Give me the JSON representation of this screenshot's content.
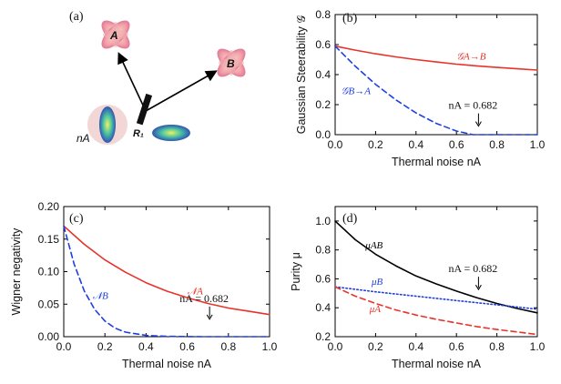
{
  "figure": {
    "panel_a": {
      "label": "(a)",
      "mode_a_label": "A",
      "mode_b_label": "B",
      "beam_splitter_label": "R₁",
      "noise_label": "nA"
    }
  },
  "chart_data": [
    {
      "id": "b",
      "type": "line",
      "panel_label": "(b)",
      "xlabel": "Thermal noise nA",
      "ylabel": "Gaussian Steerability 𝒢",
      "xlim": [
        0,
        1.0
      ],
      "ylim": [
        0,
        0.8
      ],
      "xticks": [
        "0.0",
        "0.2",
        "0.4",
        "0.6",
        "0.8",
        "1.0"
      ],
      "yticks": [
        "0.0",
        "0.2",
        "0.4",
        "0.6",
        "0.8"
      ],
      "grid": false,
      "series": [
        {
          "name": "𝒢A→B",
          "color": "#e8332a",
          "dash": "solid",
          "x": [
            0,
            0.1,
            0.2,
            0.3,
            0.4,
            0.5,
            0.6,
            0.7,
            0.8,
            0.9,
            1.0
          ],
          "y": [
            0.59,
            0.563,
            0.539,
            0.518,
            0.5,
            0.484,
            0.47,
            0.458,
            0.448,
            0.439,
            0.43
          ]
        },
        {
          "name": "𝒢B→A",
          "color": "#1f3fe0",
          "dash": "dashed",
          "x": [
            0,
            0.1,
            0.2,
            0.3,
            0.4,
            0.5,
            0.6,
            0.682,
            0.8,
            0.9,
            1.0
          ],
          "y": [
            0.59,
            0.455,
            0.335,
            0.232,
            0.145,
            0.075,
            0.024,
            0.0,
            0.0,
            0.0,
            0.0
          ]
        }
      ],
      "annotation": {
        "text": "nA = 0.682",
        "x": 0.682
      }
    },
    {
      "id": "c",
      "type": "line",
      "panel_label": "(c)",
      "xlabel": "Thermal noise nA",
      "ylabel": "Wigner negativity",
      "xlim": [
        0,
        1.0
      ],
      "ylim": [
        0,
        0.2
      ],
      "xticks": [
        "0.0",
        "0.2",
        "0.4",
        "0.6",
        "0.8",
        "1.0"
      ],
      "yticks": [
        "0.00",
        "0.05",
        "0.10",
        "0.15",
        "0.20"
      ],
      "grid": false,
      "series": [
        {
          "name": "𝒩A",
          "color": "#e8332a",
          "dash": "solid",
          "x": [
            0,
            0.1,
            0.2,
            0.3,
            0.4,
            0.5,
            0.6,
            0.7,
            0.8,
            0.9,
            1.0
          ],
          "y": [
            0.17,
            0.142,
            0.118,
            0.099,
            0.083,
            0.07,
            0.06,
            0.051,
            0.044,
            0.039,
            0.034
          ]
        },
        {
          "name": "𝒩B",
          "color": "#1f3fe0",
          "dash": "dashed",
          "x": [
            0,
            0.05,
            0.1,
            0.15,
            0.2,
            0.25,
            0.3,
            0.4,
            0.5,
            0.6,
            0.682,
            0.8,
            1.0
          ],
          "y": [
            0.17,
            0.112,
            0.07,
            0.042,
            0.024,
            0.013,
            0.007,
            0.002,
            0.0005,
            0.0001,
            0.0,
            0.0,
            0.0
          ]
        }
      ],
      "annotation": {
        "text": "nA = 0.682",
        "x": 0.682
      }
    },
    {
      "id": "d",
      "type": "line",
      "panel_label": "(d)",
      "xlabel": "Thermal noise nA",
      "ylabel": "Purity μ",
      "xlim": [
        0,
        1.0
      ],
      "ylim": [
        0.2,
        1.1
      ],
      "xticks": [
        "0.0",
        "0.2",
        "0.4",
        "0.6",
        "0.8",
        "1.0"
      ],
      "yticks": [
        "0.2",
        "0.4",
        "0.6",
        "0.8",
        "1.0"
      ],
      "grid": false,
      "series": [
        {
          "name": "μAB",
          "color": "#000000",
          "dash": "solid",
          "x": [
            0,
            0.1,
            0.2,
            0.3,
            0.4,
            0.5,
            0.6,
            0.7,
            0.8,
            0.9,
            1.0
          ],
          "y": [
            1.0,
            0.87,
            0.77,
            0.69,
            0.62,
            0.565,
            0.515,
            0.47,
            0.43,
            0.395,
            0.365
          ]
        },
        {
          "name": "μB",
          "color": "#1f3fe0",
          "dash": "dotted",
          "x": [
            0,
            0.2,
            0.4,
            0.6,
            0.8,
            1.0
          ],
          "y": [
            0.545,
            0.51,
            0.48,
            0.45,
            0.42,
            0.39
          ]
        },
        {
          "name": "μA",
          "color": "#e8332a",
          "dash": "dashed",
          "x": [
            0,
            0.1,
            0.2,
            0.3,
            0.4,
            0.5,
            0.6,
            0.7,
            0.8,
            0.9,
            1.0
          ],
          "y": [
            0.545,
            0.48,
            0.43,
            0.385,
            0.35,
            0.32,
            0.295,
            0.27,
            0.25,
            0.233,
            0.215
          ]
        }
      ],
      "annotation": {
        "text": "nA = 0.682",
        "x": 0.682
      }
    }
  ]
}
